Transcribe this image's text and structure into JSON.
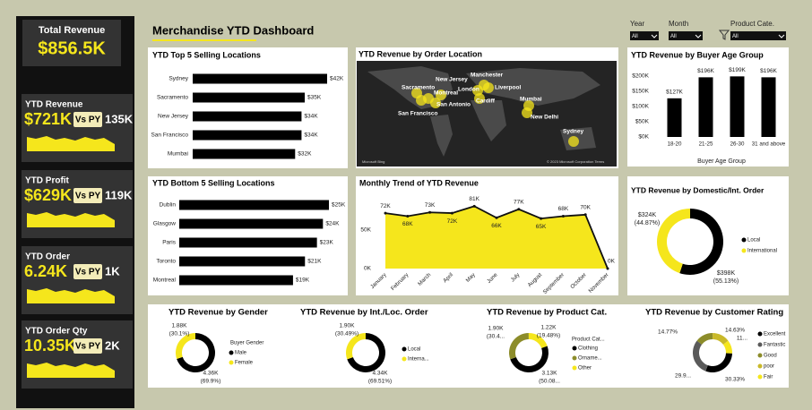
{
  "header": {
    "title": "Merchandise YTD Dashboard"
  },
  "total": {
    "label": "Total Revenue",
    "value": "$856.5K"
  },
  "kpis": [
    {
      "label": "YTD Revenue",
      "value": "$721K",
      "compare": "Vs PY",
      "delta": "135K"
    },
    {
      "label": "YTD Profit",
      "value": "$629K",
      "compare": "Vs PY",
      "delta": "119K"
    },
    {
      "label": "YTD Order",
      "value": "6.24K",
      "compare": "Vs PY",
      "delta": "1K"
    },
    {
      "label": "YTD Order Qty",
      "value": "10.35K",
      "compare": "Vs PY",
      "delta": "2K"
    }
  ],
  "filters": [
    {
      "label": "Year",
      "value": "All"
    },
    {
      "label": "Month",
      "value": "All"
    },
    {
      "label": "Product Cate.",
      "value": "All"
    }
  ],
  "map": {
    "title": "YTD Revenue by Order Location",
    "labels": [
      "Sacramento",
      "New Jersey",
      "Manchester",
      "London",
      "Liverpool",
      "Montreal",
      "San Antonio",
      "San Francisco",
      "Cardiff",
      "Mumbai",
      "New Delhi",
      "Sydney"
    ],
    "credit": "Microsoft Bing",
    "copyright": "© 2023 Microsoft Corporation Terms"
  },
  "chart_data": [
    {
      "type": "hbar",
      "title": "YTD Top 5 Selling Locations",
      "categories": [
        "Sydney",
        "Sacramento",
        "New Jersey",
        "San Francisco",
        "Mumbai"
      ],
      "values": [
        42000,
        35000,
        34000,
        34000,
        32000
      ],
      "value_labels": [
        "$42K",
        "$35K",
        "$34K",
        "$34K",
        "$32K"
      ],
      "color": "#000000"
    },
    {
      "type": "hbar",
      "title": "YTD Bottom 5 Selling Locations",
      "categories": [
        "Dublin",
        "Glasgow",
        "Paris",
        "Toronto",
        "Montreal"
      ],
      "values": [
        25000,
        24000,
        23000,
        21000,
        19000
      ],
      "value_labels": [
        "$25K",
        "$24K",
        "$23K",
        "$21K",
        "$19K"
      ],
      "color": "#000000"
    },
    {
      "type": "bar",
      "title": "YTD Revenue by Buyer Age Group",
      "categories": [
        "18-20",
        "21-25",
        "26-30",
        "31 and above"
      ],
      "values": [
        127000,
        196000,
        199000,
        196000
      ],
      "value_labels": [
        "$127K",
        "$196K",
        "$199K",
        "$196K"
      ],
      "ylim": [
        0,
        200000
      ],
      "yticks": [
        {
          "value": 0,
          "label": "$0K"
        },
        {
          "value": 50000,
          "label": "$50K"
        },
        {
          "value": 100000,
          "label": "$100K"
        },
        {
          "value": 150000,
          "label": "$150K"
        },
        {
          "value": 200000,
          "label": "$200K"
        }
      ],
      "x_label": "Buyer Age Group",
      "color": "#000000"
    },
    {
      "type": "area",
      "title": "Monthly Trend of YTD Revenue",
      "categories": [
        "January",
        "February",
        "March",
        "April",
        "May",
        "June",
        "July",
        "August",
        "September",
        "October",
        "November"
      ],
      "values": [
        72000,
        68000,
        73000,
        72000,
        81000,
        66000,
        77000,
        65000,
        68000,
        70000,
        0
      ],
      "value_labels": [
        "72K",
        "68K",
        "73K",
        "72K",
        "81K",
        "66K",
        "77K",
        "65K",
        "68K",
        "70K",
        "0K"
      ],
      "ylim": [
        0,
        100000
      ],
      "yticks": [
        {
          "value": 0,
          "label": "0K"
        },
        {
          "value": 50000,
          "label": "50K"
        }
      ],
      "color": "#f5e61c"
    },
    {
      "type": "donut",
      "title": "YTD Revenue by Domestic/Int. Order",
      "categories": [
        "Local",
        "International"
      ],
      "values": [
        398000,
        324000
      ],
      "value_labels": [
        "$398K",
        "$324K"
      ],
      "percent_labels": [
        "(55.13%)",
        "(44.87%)"
      ],
      "colors": [
        "#000000",
        "#f5e61c"
      ]
    },
    {
      "type": "donut",
      "title": "YTD Revenue by Gender",
      "legend_title": "Buyer Gender",
      "categories": [
        "Male",
        "Female"
      ],
      "values": [
        4360,
        1880
      ],
      "value_labels": [
        "4.36K",
        "1.88K"
      ],
      "percent_labels": [
        "(69.9%)",
        "(30.1%)"
      ],
      "colors": [
        "#000000",
        "#f5e61c"
      ]
    },
    {
      "type": "donut",
      "title": "YTD Revenue by Int./Loc. Order",
      "categories": [
        "Local",
        "Interna..."
      ],
      "values": [
        4340,
        1900
      ],
      "value_labels": [
        "4.34K",
        "1.90K"
      ],
      "percent_labels": [
        "(69.51%)",
        "(30.49%)"
      ],
      "colors": [
        "#000000",
        "#f5e61c"
      ]
    },
    {
      "type": "donut",
      "title": "YTD Revenue by Product Cat.",
      "legend_title": "Product Cat...",
      "categories": [
        "Clothing",
        "Orname...",
        "Other"
      ],
      "values": [
        3130,
        1900,
        1220
      ],
      "value_labels": [
        "3.13K",
        "1.90K",
        "1.22K"
      ],
      "percent_labels": [
        "(50.08...",
        "(30.4...",
        "(19.48%)"
      ],
      "colors": [
        "#000000",
        "#8c8c2a",
        "#f5e61c"
      ]
    },
    {
      "type": "donut",
      "title": "YTD Revenue by Customer Rating",
      "categories": [
        "Excellent",
        "Fantastic",
        "Good",
        "poor",
        "Fair"
      ],
      "values": [
        30.33,
        29.9,
        14.77,
        14.63,
        11
      ],
      "value_labels": [
        "30.33%",
        "29.9...",
        "14.77%",
        "14.63%",
        "11..."
      ],
      "colors": [
        "#000000",
        "#5a5a5a",
        "#8c8c2a",
        "#c9b92a",
        "#f5e61c"
      ]
    }
  ]
}
